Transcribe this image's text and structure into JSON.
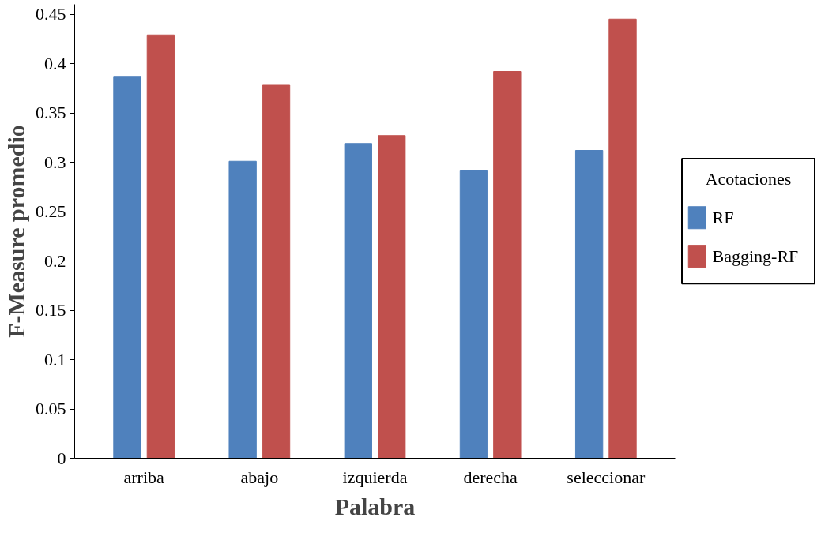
{
  "chart_data": {
    "type": "bar",
    "xlabel": "Palabra",
    "ylabel": "F-Measure promedio",
    "legend_title": "Acotaciones",
    "categories": [
      "arriba",
      "abajo",
      "izquierda",
      "derecha",
      "seleccionar"
    ],
    "series": [
      {
        "name": "RF",
        "color": "#4f81bd",
        "values": [
          0.387,
          0.301,
          0.319,
          0.292,
          0.312
        ]
      },
      {
        "name": "Bagging-RF",
        "color": "#c0504d",
        "values": [
          0.429,
          0.378,
          0.327,
          0.392,
          0.445
        ]
      }
    ],
    "ylim": [
      0,
      0.46
    ],
    "yticks": [
      0,
      0.05,
      0.1,
      0.15,
      0.2,
      0.25,
      0.3,
      0.35,
      0.4,
      0.45
    ],
    "grid": false,
    "legend": "right"
  }
}
